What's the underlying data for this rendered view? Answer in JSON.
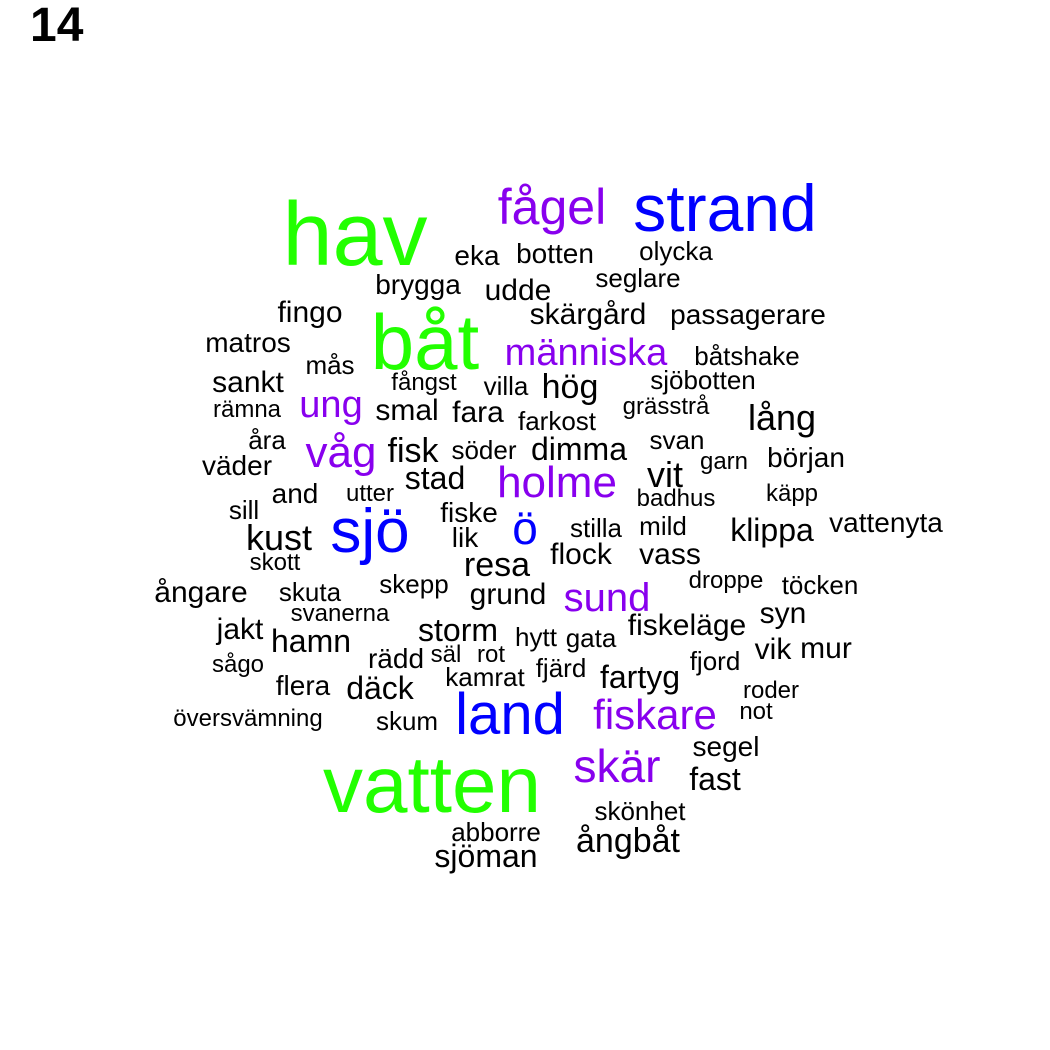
{
  "panel_label": "14",
  "colors": {
    "green": "#22ff00",
    "blue": "#0000ff",
    "purple": "#8800ee",
    "black": "#000000"
  },
  "words": [
    {
      "text": "hav",
      "color": "green"
    },
    {
      "text": "båt",
      "color": "green"
    },
    {
      "text": "vatten",
      "color": "green"
    },
    {
      "text": "strand",
      "color": "blue"
    },
    {
      "text": "sjö",
      "color": "blue"
    },
    {
      "text": "ö",
      "color": "blue"
    },
    {
      "text": "land",
      "color": "blue"
    },
    {
      "text": "fågel",
      "color": "purple"
    },
    {
      "text": "människa",
      "color": "purple"
    },
    {
      "text": "ung",
      "color": "purple"
    },
    {
      "text": "våg",
      "color": "purple"
    },
    {
      "text": "holme",
      "color": "purple"
    },
    {
      "text": "sund",
      "color": "purple"
    },
    {
      "text": "fiskare",
      "color": "purple"
    },
    {
      "text": "skär",
      "color": "purple"
    },
    {
      "text": "eka",
      "color": "black"
    },
    {
      "text": "botten",
      "color": "black"
    },
    {
      "text": "olycka",
      "color": "black"
    },
    {
      "text": "seglare",
      "color": "black"
    },
    {
      "text": "brygga",
      "color": "black"
    },
    {
      "text": "udde",
      "color": "black"
    },
    {
      "text": "fingo",
      "color": "black"
    },
    {
      "text": "skärgård",
      "color": "black"
    },
    {
      "text": "passagerare",
      "color": "black"
    },
    {
      "text": "matros",
      "color": "black"
    },
    {
      "text": "båtshake",
      "color": "black"
    },
    {
      "text": "mås",
      "color": "black"
    },
    {
      "text": "sankt",
      "color": "black"
    },
    {
      "text": "fångst",
      "color": "black"
    },
    {
      "text": "villa",
      "color": "black"
    },
    {
      "text": "hög",
      "color": "black"
    },
    {
      "text": "sjöbotten",
      "color": "black"
    },
    {
      "text": "rämna",
      "color": "black"
    },
    {
      "text": "smal",
      "color": "black"
    },
    {
      "text": "fara",
      "color": "black"
    },
    {
      "text": "farkost",
      "color": "black"
    },
    {
      "text": "grässtrå",
      "color": "black"
    },
    {
      "text": "lång",
      "color": "black"
    },
    {
      "text": "åra",
      "color": "black"
    },
    {
      "text": "fisk",
      "color": "black"
    },
    {
      "text": "söder",
      "color": "black"
    },
    {
      "text": "dimma",
      "color": "black"
    },
    {
      "text": "svan",
      "color": "black"
    },
    {
      "text": "väder",
      "color": "black"
    },
    {
      "text": "stad",
      "color": "black"
    },
    {
      "text": "vit",
      "color": "black"
    },
    {
      "text": "garn",
      "color": "black"
    },
    {
      "text": "början",
      "color": "black"
    },
    {
      "text": "and",
      "color": "black"
    },
    {
      "text": "utter",
      "color": "black"
    },
    {
      "text": "badhus",
      "color": "black"
    },
    {
      "text": "käpp",
      "color": "black"
    },
    {
      "text": "sill",
      "color": "black"
    },
    {
      "text": "fiske",
      "color": "black"
    },
    {
      "text": "stilla",
      "color": "black"
    },
    {
      "text": "mild",
      "color": "black"
    },
    {
      "text": "klippa",
      "color": "black"
    },
    {
      "text": "vattenyta",
      "color": "black"
    },
    {
      "text": "kust",
      "color": "black"
    },
    {
      "text": "lik",
      "color": "black"
    },
    {
      "text": "skott",
      "color": "black"
    },
    {
      "text": "resa",
      "color": "black"
    },
    {
      "text": "flock",
      "color": "black"
    },
    {
      "text": "vass",
      "color": "black"
    },
    {
      "text": "droppe",
      "color": "black"
    },
    {
      "text": "töcken",
      "color": "black"
    },
    {
      "text": "ångare",
      "color": "black"
    },
    {
      "text": "skuta",
      "color": "black"
    },
    {
      "text": "skepp",
      "color": "black"
    },
    {
      "text": "grund",
      "color": "black"
    },
    {
      "text": "syn",
      "color": "black"
    },
    {
      "text": "svanerna",
      "color": "black"
    },
    {
      "text": "jakt",
      "color": "black"
    },
    {
      "text": "storm",
      "color": "black"
    },
    {
      "text": "fiskeläge",
      "color": "black"
    },
    {
      "text": "hamn",
      "color": "black"
    },
    {
      "text": "hytt",
      "color": "black"
    },
    {
      "text": "gata",
      "color": "black"
    },
    {
      "text": "vik",
      "color": "black"
    },
    {
      "text": "mur",
      "color": "black"
    },
    {
      "text": "rädd",
      "color": "black"
    },
    {
      "text": "säl",
      "color": "black"
    },
    {
      "text": "rot",
      "color": "black"
    },
    {
      "text": "fjord",
      "color": "black"
    },
    {
      "text": "sågo",
      "color": "black"
    },
    {
      "text": "fjärd",
      "color": "black"
    },
    {
      "text": "kamrat",
      "color": "black"
    },
    {
      "text": "fartyg",
      "color": "black"
    },
    {
      "text": "flera",
      "color": "black"
    },
    {
      "text": "däck",
      "color": "black"
    },
    {
      "text": "roder",
      "color": "black"
    },
    {
      "text": "not",
      "color": "black"
    },
    {
      "text": "översvämning",
      "color": "black"
    },
    {
      "text": "skum",
      "color": "black"
    },
    {
      "text": "segel",
      "color": "black"
    },
    {
      "text": "fast",
      "color": "black"
    },
    {
      "text": "skönhet",
      "color": "black"
    },
    {
      "text": "abborre",
      "color": "black"
    },
    {
      "text": "ångbåt",
      "color": "black"
    },
    {
      "text": "sjöman",
      "color": "black"
    }
  ]
}
